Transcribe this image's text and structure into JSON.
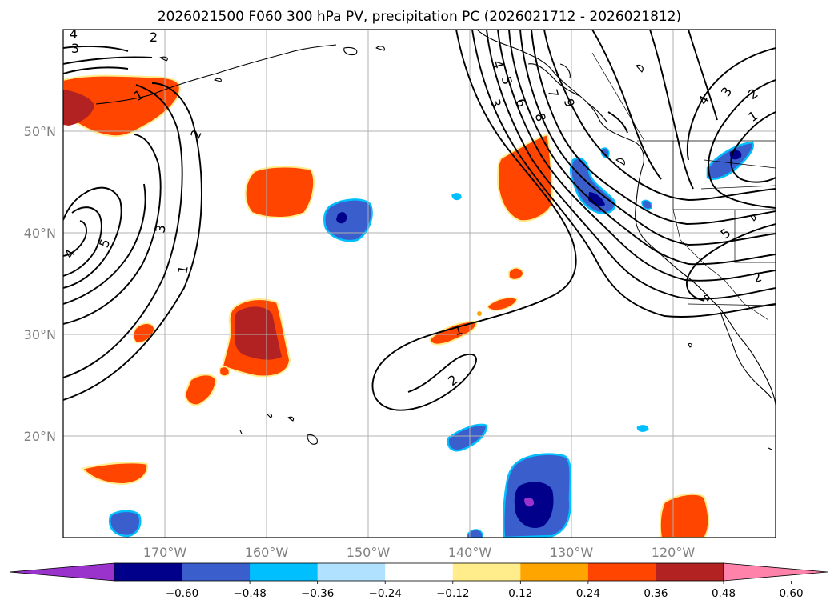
{
  "chart_data": {
    "type": "map",
    "title": "2026021500 F060 300 hPa PV, precipitation PC (2026021712 - 2026021812)",
    "lon_ticks": [
      "170°W",
      "160°W",
      "150°W",
      "140°W",
      "130°W",
      "120°W"
    ],
    "lat_ticks": [
      "50°N",
      "40°N",
      "30°N",
      "20°N"
    ],
    "lon_range": [
      -180,
      -110
    ],
    "lat_range": [
      10,
      60
    ],
    "grid": true,
    "colorbar": {
      "orientation": "horizontal",
      "extend": "both",
      "ticks": [
        "−0.60",
        "−0.48",
        "−0.36",
        "−0.24",
        "−0.12",
        "0.12",
        "0.24",
        "0.36",
        "0.48",
        "0.60"
      ],
      "levels": [
        -0.6,
        -0.48,
        -0.36,
        -0.24,
        -0.12,
        0.12,
        0.24,
        0.36,
        0.48,
        0.6
      ],
      "colors": [
        "#9933cc",
        "#00008b",
        "#3a5fcd",
        "#00bfff",
        "#b0e2ff",
        "#ffffff",
        "#ffec8b",
        "#ffa500",
        "#ff4500",
        "#b22222",
        "#ff82ab"
      ]
    },
    "contour_labels": [
      "1",
      "2",
      "3",
      "4",
      "5",
      "6",
      "7",
      "8",
      "9"
    ],
    "pv_contours": [
      {
        "label": "2",
        "lat": 27,
        "lon": -141
      },
      {
        "label": "1",
        "lat": 31,
        "lon": -141.5
      },
      {
        "label": "1",
        "lat": 54,
        "lon": -170
      },
      {
        "label": "2",
        "lat": 51,
        "lon": -161
      },
      {
        "label": "3",
        "lat": 40,
        "lon": -165
      },
      {
        "label": "5",
        "lat": 39,
        "lon": -174
      },
      {
        "label": "1",
        "lat": 37,
        "lon": -164
      },
      {
        "label": "4",
        "lat": 39,
        "lon": -178
      },
      {
        "label": "3",
        "lat": 56,
        "lon": -178
      },
      {
        "label": "4",
        "lat": 59,
        "lon": -178
      }
    ]
  }
}
